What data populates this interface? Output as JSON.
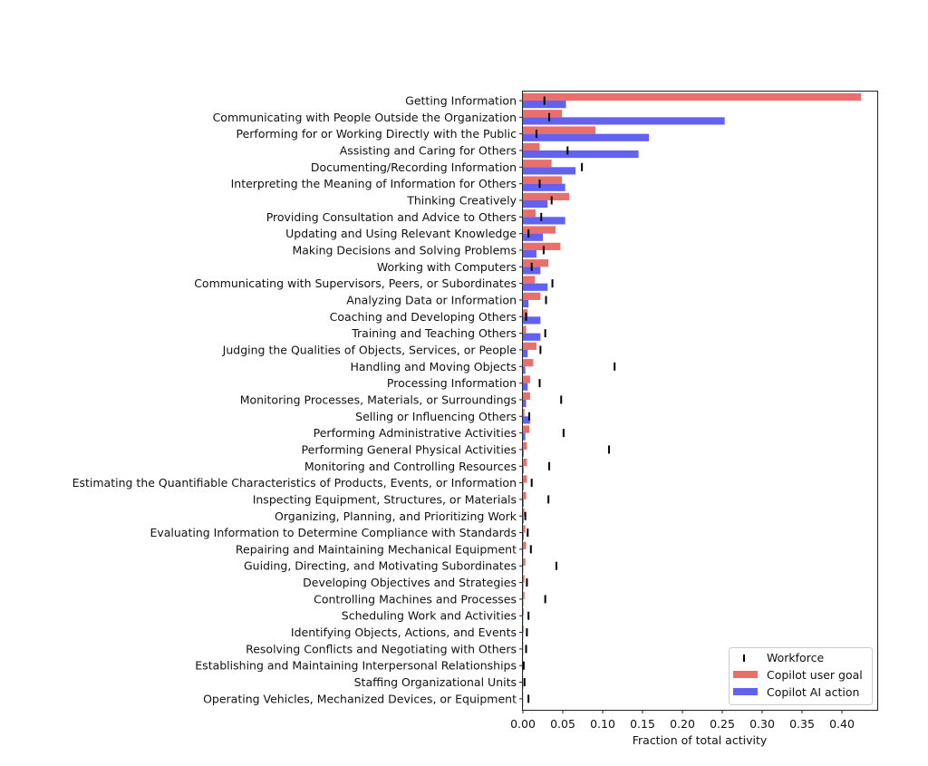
{
  "chart_data": {
    "type": "bar",
    "orientation": "horizontal",
    "title": "",
    "xlabel": "Fraction of total activity",
    "ylabel": "",
    "xlim": [
      0,
      0.44
    ],
    "xticks": [
      "0.00",
      "0.05",
      "0.10",
      "0.15",
      "0.20",
      "0.25",
      "0.30",
      "0.35",
      "0.40"
    ],
    "grid": false,
    "legend_position": "bottom-right",
    "colors": {
      "Copilot user goal": "#e8706c",
      "Copilot AI action": "#6262ee",
      "Workforce": "#000000"
    },
    "categories": [
      "Getting Information",
      "Communicating with People Outside the Organization",
      "Performing for or Working Directly with the Public",
      "Assisting and Caring for Others",
      "Documenting/Recording Information",
      "Interpreting the Meaning of Information for Others",
      "Thinking Creatively",
      "Providing Consultation and Advice to Others",
      "Updating and Using Relevant Knowledge",
      "Making Decisions and Solving Problems",
      "Working with Computers",
      "Communicating with Supervisors, Peers, or Subordinates",
      "Analyzing Data or Information",
      "Coaching and Developing Others",
      "Training and Teaching Others",
      "Judging the Qualities of Objects, Services, or People",
      "Handling and Moving Objects",
      "Processing Information",
      "Monitoring Processes, Materials, or Surroundings",
      "Selling or Influencing Others",
      "Performing Administrative Activities",
      "Performing General Physical Activities",
      "Monitoring and Controlling Resources",
      "Estimating the Quantifiable Characteristics of Products, Events, or Information",
      "Inspecting Equipment, Structures, or Materials",
      "Organizing, Planning, and Prioritizing Work",
      "Evaluating Information to Determine Compliance with Standards",
      "Repairing and Maintaining Mechanical Equipment",
      "Guiding, Directing, and Motivating Subordinates",
      "Developing Objectives and Strategies",
      "Controlling Machines and Processes",
      "Scheduling Work and Activities",
      "Identifying Objects, Actions, and Events",
      "Resolving Conflicts and Negotiating with Others",
      "Establishing and Maintaining Interpersonal Relationships",
      "Staffing Organizational Units",
      "Operating Vehicles, Mechanized Devices, or Equipment"
    ],
    "series": [
      {
        "name": "Copilot user goal",
        "mark": "bar",
        "values": [
          0.424,
          0.049,
          0.091,
          0.021,
          0.036,
          0.049,
          0.058,
          0.016,
          0.041,
          0.047,
          0.032,
          0.015,
          0.022,
          0.006,
          0.004,
          0.017,
          0.013,
          0.009,
          0.009,
          0.002,
          0.008,
          0.005,
          0.005,
          0.005,
          0.004,
          0.002,
          0.003,
          0.004,
          0.003,
          0.002,
          0.002,
          0.001,
          0.001,
          0.0005,
          0.0003,
          0.0003,
          0.0003
        ]
      },
      {
        "name": "Copilot AI action",
        "mark": "bar",
        "values": [
          0.054,
          0.253,
          0.158,
          0.145,
          0.066,
          0.053,
          0.031,
          0.053,
          0.025,
          0.017,
          0.022,
          0.031,
          0.007,
          0.022,
          0.022,
          0.006,
          0.003,
          0.006,
          0.004,
          0.009,
          0.003,
          0.001,
          0.001,
          0.001,
          0.001,
          0.001,
          0.001,
          0.0005,
          0.0005,
          0.0005,
          0.0005,
          0.0003,
          0.0003,
          0.0003,
          0.0002,
          0.0002,
          0.0002
        ]
      },
      {
        "name": "Workforce",
        "mark": "tick",
        "values": [
          0.027,
          0.033,
          0.017,
          0.056,
          0.074,
          0.021,
          0.036,
          0.023,
          0.007,
          0.026,
          0.011,
          0.037,
          0.029,
          0.004,
          0.028,
          0.022,
          0.115,
          0.021,
          0.048,
          0.008,
          0.051,
          0.108,
          0.033,
          0.011,
          0.032,
          0.003,
          0.006,
          0.01,
          0.042,
          0.005,
          0.028,
          0.007,
          0.005,
          0.004,
          0.001,
          0.002,
          0.007
        ]
      }
    ]
  }
}
